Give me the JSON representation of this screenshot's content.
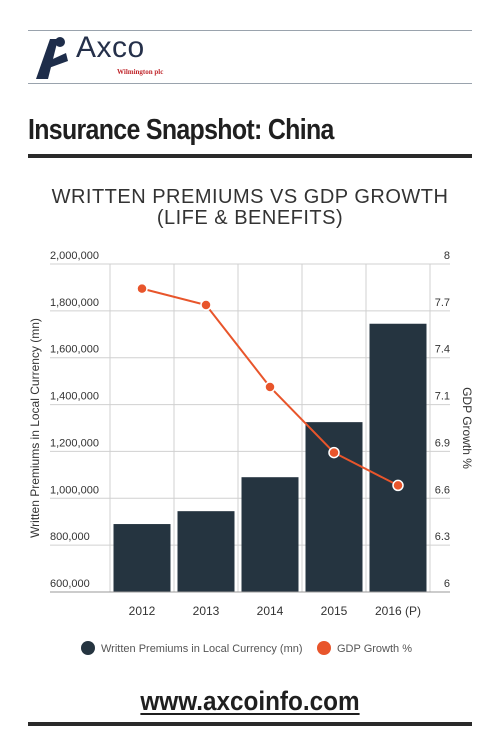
{
  "header": {
    "brand": "Axco",
    "brand_sub": "Wilmington plc",
    "title": "Insurance Snapshot: China"
  },
  "colors": {
    "bar": "#253440",
    "line": "#e8552b",
    "grid": "#d0d0d0",
    "axis_text": "#333333"
  },
  "chart_data": {
    "type": "bar",
    "title": "WRITTEN PREMIUMS  VS GDP GROWTH",
    "subtitle": "(LIFE & BENEFITS)",
    "categories": [
      "2012",
      "2013",
      "2014",
      "2015",
      "2016 (P)"
    ],
    "ylabel": "Written Premiums in Local Currency (mn)",
    "ylabel_right": "GDP Growth %",
    "ylim": [
      600000,
      2000000
    ],
    "y2lim": [
      6,
      8
    ],
    "yticks": [
      "600,000",
      "800,000",
      "1,000,000",
      "1,200,000",
      "1,400,000",
      "1,600,000",
      "1,800,000",
      "2,000,000"
    ],
    "yticks_right": [
      "6",
      "6.3",
      "6.6",
      "6.9",
      "7.1",
      "7.4",
      "7.7",
      "8"
    ],
    "grid": true,
    "legend_position": "bottom",
    "series": [
      {
        "name": "Written Premiums in Local Currency (mn)",
        "type": "bar",
        "axis": "left",
        "values": [
          890000,
          945000,
          1090000,
          1325000,
          1745000
        ]
      },
      {
        "name": "GDP Growth %",
        "type": "line",
        "axis": "right",
        "values": [
          7.85,
          7.75,
          7.25,
          6.85,
          6.65
        ]
      }
    ]
  },
  "footer": {
    "url": "www.axcoinfo.com"
  }
}
